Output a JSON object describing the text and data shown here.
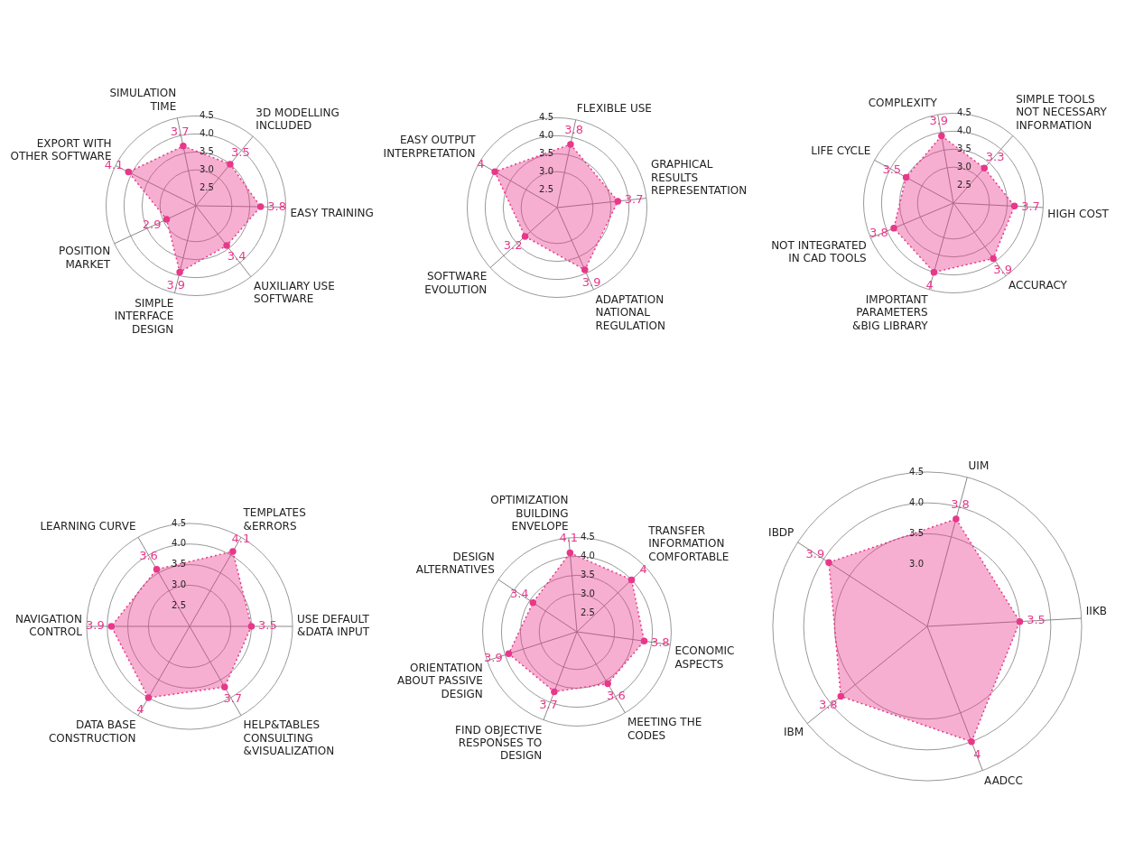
{
  "chart_data": [
    {
      "type": "radar",
      "categories": [
        "SIMULATION TIME",
        "3D MODELLING INCLUDED",
        "EASY TRAINING",
        "AUXILIARY USE SOFTWARE",
        "SIMPLE INTERFACE DESIGN",
        "POSITION MARKET",
        "EXPORT WITH OTHER SOFTWARE"
      ],
      "series": [
        {
          "color": "#e8388a",
          "values": [
            3.7,
            3.5,
            3.8,
            3.4,
            3.9,
            2.9,
            4.1
          ]
        }
      ],
      "ylim": [
        2,
        4.5
      ],
      "yticks": [
        2.5,
        {
          "value": 3,
          "label": "3.0"
        },
        3.5,
        {
          "value": 4,
          "label": "4.0"
        },
        4.5
      ],
      "data_labels": true,
      "marker": "circle",
      "line_style": "dotted",
      "grid": true,
      "legend": false
    },
    {
      "type": "radar",
      "categories": [
        "FLEXIBLE USE",
        "GRAPHICAL RESULTS REPRESENTATION",
        "ADAPTATION NATIONAL REGULATION",
        "SOFTWARE EVOLUTION",
        "EASY OUTPUT INTERPRETATION"
      ],
      "series": [
        {
          "color": "#e8388a",
          "values": [
            3.8,
            3.7,
            3.9,
            3.2,
            4.0
          ]
        }
      ],
      "ylim": [
        2,
        4.5
      ],
      "yticks": [
        2.5,
        {
          "value": 3,
          "label": "3.0"
        },
        3.5,
        {
          "value": 4,
          "label": "4.0"
        },
        4.5
      ],
      "data_labels": true,
      "marker": "circle",
      "line_style": "dotted",
      "grid": true,
      "legend": false
    },
    {
      "type": "radar",
      "categories": [
        "COMPLEXITY",
        "SIMPLE TOOLS NOT NECESSARY INFORMATION",
        "HIGH COST",
        "ACCURACY",
        "IMPORTANT PARAMETERS &BIG LIBRARY",
        "NOT INTEGRATED IN CAD TOOLS",
        "LIFE CYCLE"
      ],
      "series": [
        {
          "color": "#e8388a",
          "values": [
            3.9,
            3.3,
            3.7,
            3.9,
            4.0,
            3.8,
            3.5
          ]
        }
      ],
      "ylim": [
        2,
        4.5
      ],
      "yticks": [
        2.5,
        {
          "value": 3,
          "label": "3.0"
        },
        3.5,
        {
          "value": 4,
          "label": "4.0"
        },
        4.5
      ],
      "data_labels": true,
      "marker": "circle",
      "line_style": "dotted",
      "grid": true,
      "legend": false
    },
    {
      "type": "radar",
      "categories": [
        "TEMPLATES &ERRORS",
        "USE DEFAULT &DATA INPUT",
        "HELP&TABLES CONSULTING &VISUALIZATION",
        "DATA BASE CONSTRUCTION",
        "NAVIGATION CONTROL",
        "LEARNING CURVE"
      ],
      "series": [
        {
          "color": "#e8388a",
          "values": [
            4.1,
            3.5,
            3.7,
            4.0,
            3.9,
            3.6
          ]
        }
      ],
      "ylim": [
        2,
        4.5
      ],
      "yticks": [
        2.5,
        {
          "value": 3,
          "label": "3.0"
        },
        3.5,
        {
          "value": 4,
          "label": "4.0"
        },
        4.5
      ],
      "data_labels": true,
      "marker": "circle",
      "line_style": "dotted",
      "grid": true,
      "legend": false
    },
    {
      "type": "radar",
      "categories": [
        "OPTIMIZATION BUILDING ENVELOPE",
        "TRANSFER INFORMATION COMFORTABLE",
        "ECONOMIC ASPECTS",
        "MEETING THE CODES",
        "FIND OBJECTIVE RESPONSES TO DESIGN",
        "ORIENTATION ABOUT PASSIVE DESIGN",
        "DESIGN ALTERNATIVES"
      ],
      "series": [
        {
          "color": "#e8388a",
          "values": [
            4.1,
            4.0,
            3.8,
            3.6,
            3.7,
            3.9,
            3.4
          ]
        }
      ],
      "ylim": [
        2,
        4.5
      ],
      "yticks": [
        2.5,
        {
          "value": 3,
          "label": "3.0"
        },
        3.5,
        {
          "value": 4,
          "label": "4.0"
        },
        4.5
      ],
      "data_labels": true,
      "marker": "circle",
      "line_style": "dotted",
      "grid": true,
      "legend": false
    },
    {
      "type": "radar",
      "categories": [
        "UIM",
        "IIKB",
        "AADCC",
        "IBM",
        "IBDP"
      ],
      "series": [
        {
          "color": "#e8388a",
          "values": [
            3.8,
            3.5,
            4.0,
            3.8,
            3.9
          ]
        }
      ],
      "ylim": [
        2,
        4.5
      ],
      "yticks": [
        {
          "value": 3,
          "label": "3.0"
        },
        {
          "value": 3.5,
          "label": "3.5"
        },
        {
          "value": 4,
          "label": "4.0"
        },
        {
          "value": 4.5,
          "label": "4.5"
        }
      ],
      "data_labels": true,
      "marker": "circle",
      "line_style": "dotted",
      "grid": true,
      "legend": false
    }
  ]
}
